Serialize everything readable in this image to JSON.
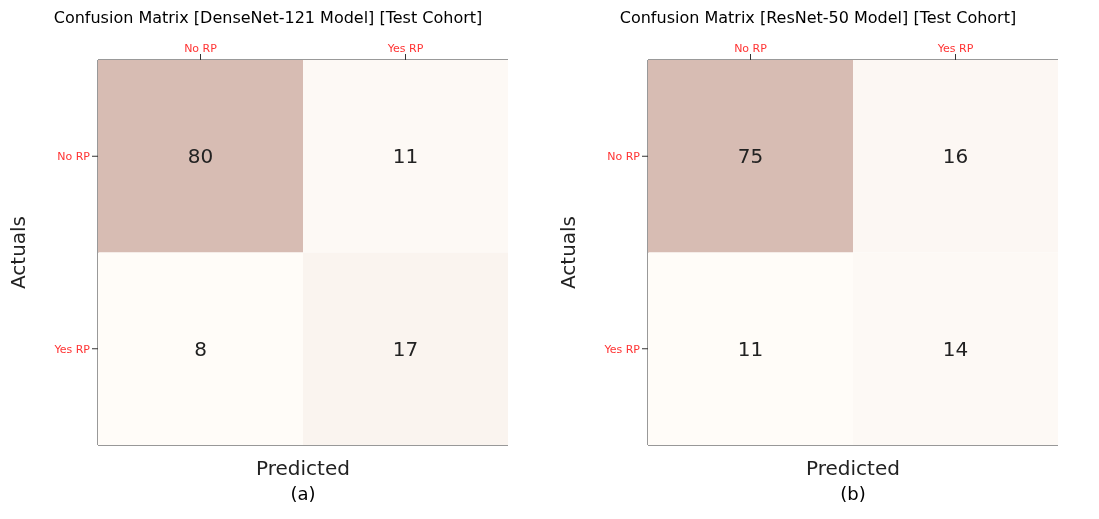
{
  "chart_data": [
    {
      "type": "heatmap",
      "title": "Confusion Matrix [DenseNet-121 Model] [Test Cohort]",
      "xlabel": "Predicted",
      "ylabel": "Actuals",
      "categories": [
        "No RP",
        "Yes RP"
      ],
      "y_categories": [
        "No RP",
        "Yes RP"
      ],
      "cells": [
        [
          80,
          11
        ],
        [
          8,
          17
        ]
      ],
      "data_labels": true,
      "annotations": [
        "(a)"
      ]
    },
    {
      "type": "heatmap",
      "title": "Confusion Matrix [ResNet-50 Model] [Test Cohort]",
      "xlabel": "Predicted",
      "ylabel": "Actuals",
      "categories": [
        "No RP",
        "Yes RP"
      ],
      "y_categories": [
        "No RP",
        "Yes RP"
      ],
      "cells": [
        [
          75,
          16
        ],
        [
          11,
          14
        ]
      ],
      "data_labels": true,
      "annotations": [
        "(b)"
      ]
    }
  ]
}
